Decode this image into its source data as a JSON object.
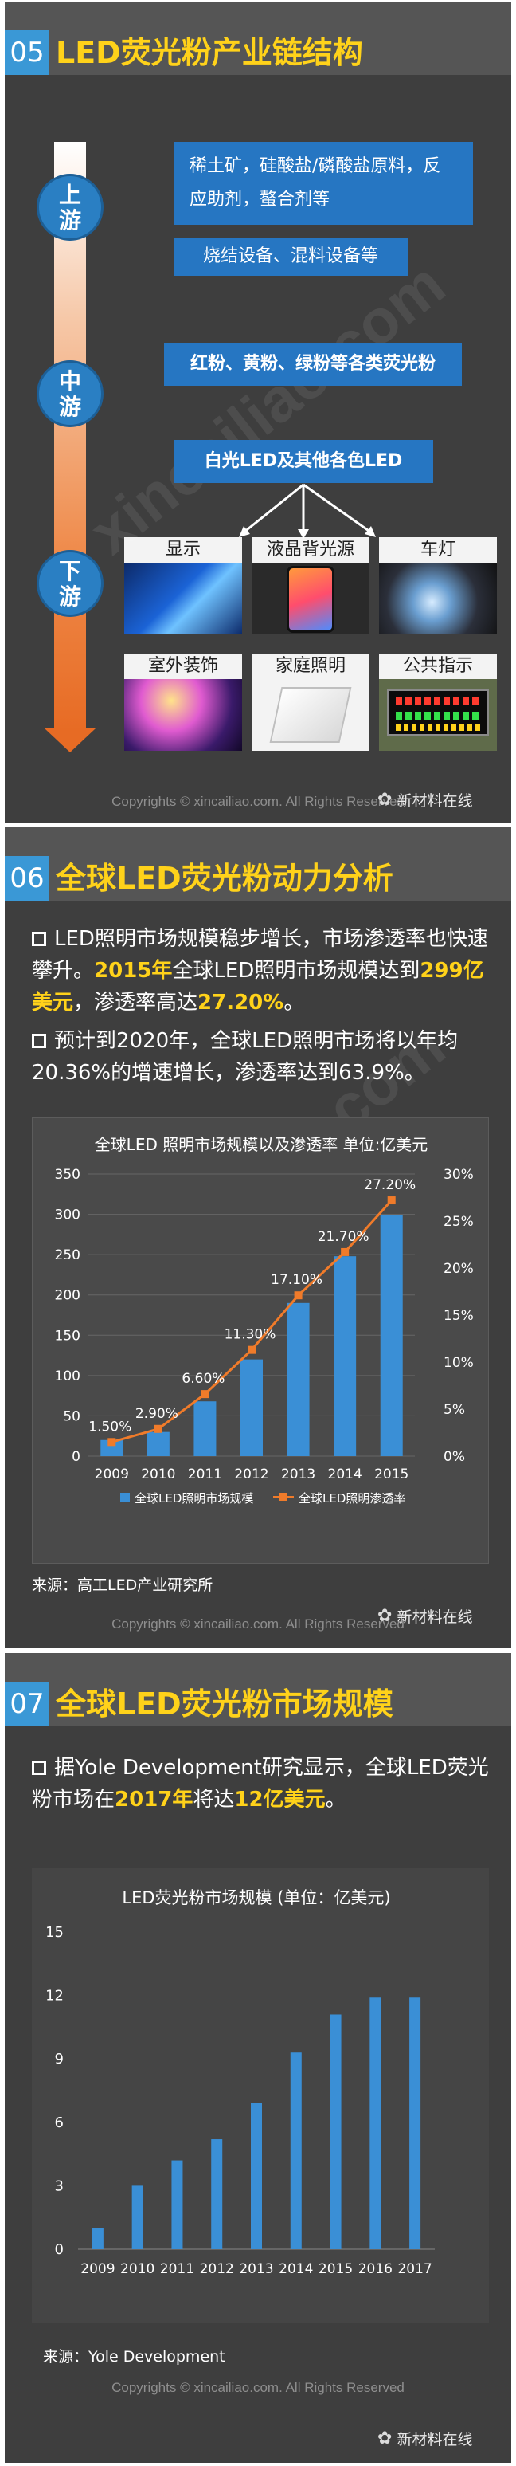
{
  "panel1": {
    "number": "05",
    "title": "LED荧光粉产业链结构",
    "stages": {
      "upstream": "上\n游",
      "midstream": "中\n游",
      "downstream": "下\n游"
    },
    "boxes": {
      "materials": "稀土矿，硅酸盐/磷酸盐原料，反应助剂，螯合剂等",
      "equipment": "烧结设备、混料设备等",
      "phosphors": "红粉、黄粉、绿粉等各类荧光粉",
      "white_led": "白光LED及其他各色LED"
    },
    "applications": [
      "显示",
      "液晶背光源",
      "车灯",
      "室外装饰",
      "家庭照明",
      "公共指示"
    ],
    "copyright": "Copyrights © xincailiao.com. All Rights Reserved",
    "brand": "新材料在线",
    "watermark": "xincailiao.com"
  },
  "panel2": {
    "number": "06",
    "title": "全球LED荧光粉动力分析",
    "bullet1_part1": "LED照明市场规模稳步增长，市场渗透率也快速攀升。",
    "bullet1_hl1": "2015年",
    "bullet1_part2": "全球LED照明市场规模达到",
    "bullet1_hl2": "299亿美元",
    "bullet1_part3": "，渗透率高达",
    "bullet1_hl3": "27.20%",
    "bullet1_part4": "。",
    "bullet2": "预计到2020年，全球LED照明市场将以年均20.36%的增速增长，渗透率达到63.9%。",
    "source": "来源：高工LED产业研究所",
    "copyright": "Copyrights © xincailiao.com. All Rights Reserved",
    "brand": "新材料在线",
    "watermark": "xincailiao.com"
  },
  "panel3": {
    "number": "07",
    "title": "全球LED荧光粉市场规模",
    "bullet_part1": "据Yole Development研究显示，全球LED荧光粉市场在",
    "bullet_hl1": "2017年",
    "bullet_part2": "将达",
    "bullet_hl2": "12亿美元",
    "bullet_part3": "。",
    "source": "来源：Yole Development",
    "copyright": "Copyrights © xincailiao.com. All Rights Reserved",
    "brand": "新材料在线",
    "watermark": "xincailiao.com"
  },
  "colors": {
    "accent_yellow": "#ffd21a",
    "blue": "#3a98d6",
    "bar_blue": "#3a8fd6",
    "line_orange": "#f07b2a"
  },
  "chart_data": [
    {
      "type": "bar",
      "title": "全球LED 照明市场规模以及渗透率 单位:亿美元",
      "categories": [
        "2009",
        "2010",
        "2011",
        "2012",
        "2013",
        "2014",
        "2015"
      ],
      "series": [
        {
          "name": "全球LED照明市场规模",
          "type": "bar",
          "axis": "left",
          "values": [
            20,
            30,
            68,
            120,
            190,
            248,
            299
          ]
        },
        {
          "name": "全球LED照明渗透率",
          "type": "line",
          "axis": "right",
          "values": [
            1.5,
            2.9,
            6.6,
            11.3,
            17.1,
            21.7,
            27.2
          ],
          "labels": [
            "1.50%",
            "2.90%",
            "6.60%",
            "11.30%",
            "17.10%",
            "21.70%",
            "27.20%"
          ]
        }
      ],
      "ylim": [
        0,
        350
      ],
      "yticks": [
        "0",
        "50",
        "100",
        "150",
        "200",
        "250",
        "300",
        "350"
      ],
      "y2lim": [
        0,
        30
      ],
      "y2ticks": [
        "0%",
        "5%",
        "10%",
        "15%",
        "20%",
        "25%",
        "30%"
      ],
      "legend": "bottom"
    },
    {
      "type": "bar",
      "title": "LED荧光粉市场规模 (单位：亿美元)",
      "categories": [
        "2009",
        "2010",
        "2011",
        "2012",
        "2013",
        "2014",
        "2015",
        "2016",
        "2017"
      ],
      "values": [
        1,
        3,
        4.2,
        5.2,
        6.9,
        9.3,
        11.1,
        11.9,
        11.9
      ],
      "ylim": [
        0,
        15
      ],
      "yticks": [
        "0",
        "3",
        "6",
        "9",
        "12",
        "15"
      ]
    }
  ]
}
